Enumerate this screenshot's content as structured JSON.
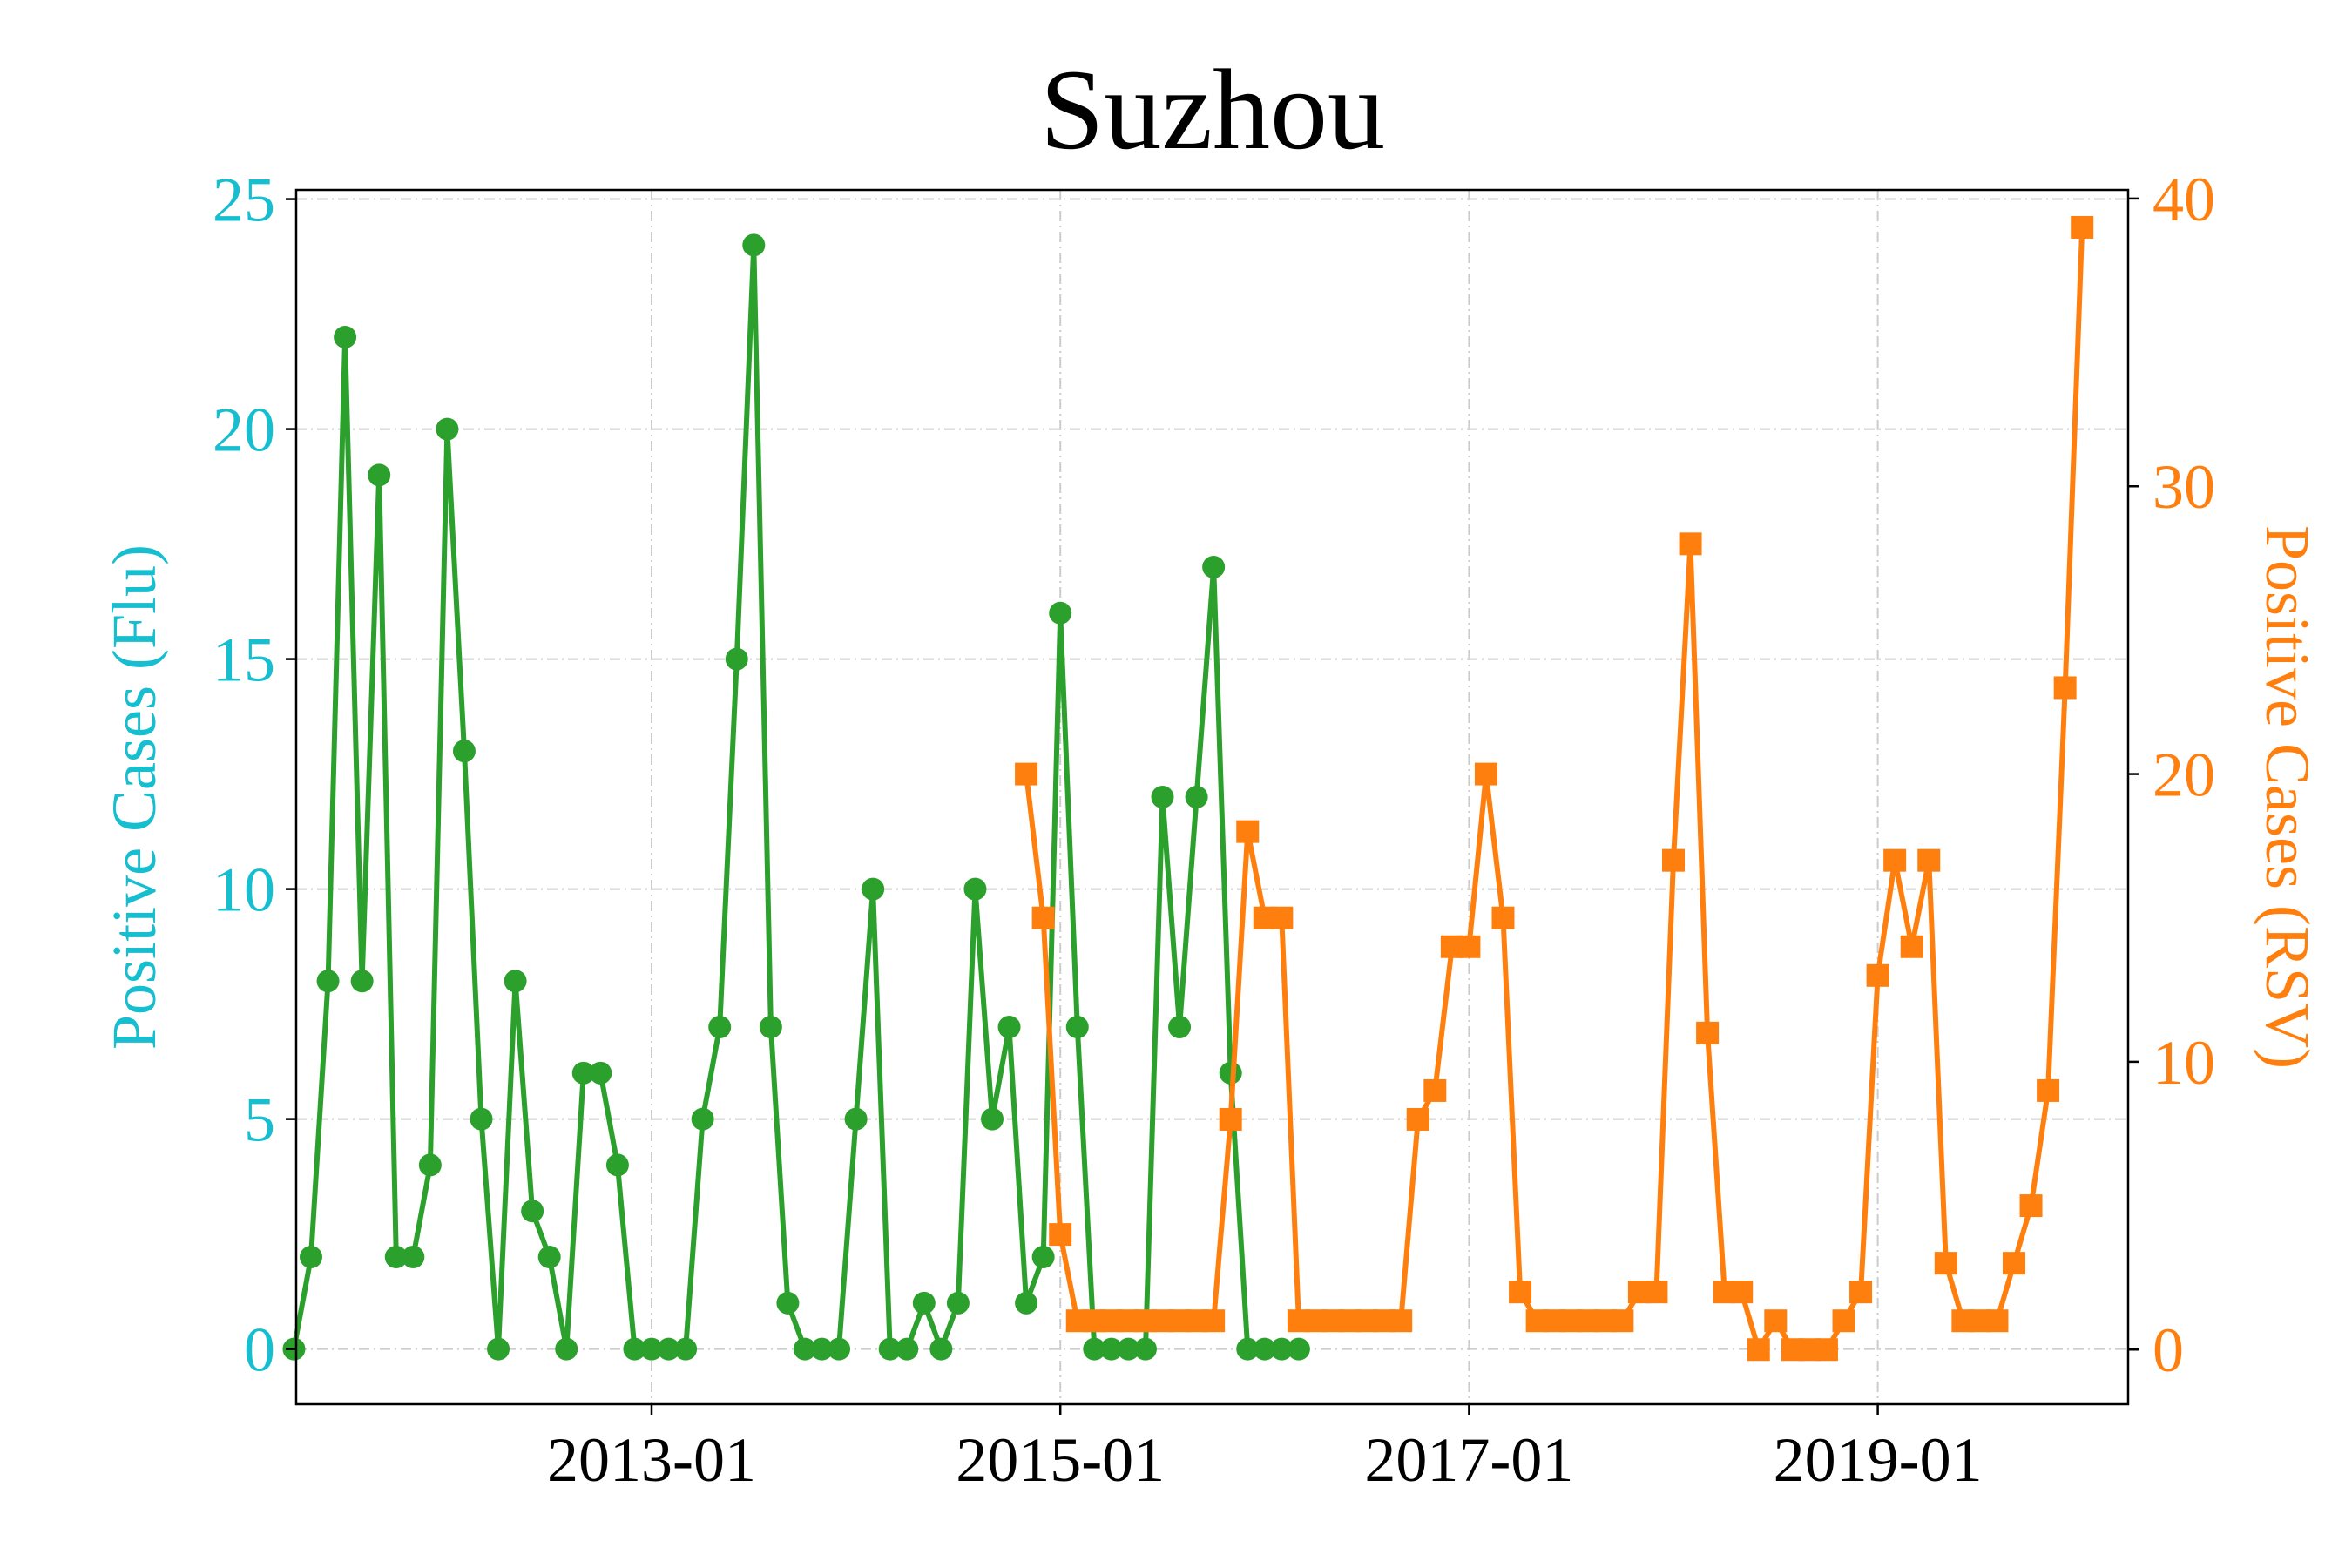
{
  "chart_data": {
    "type": "line",
    "title": "Suzhou",
    "xlabel": "",
    "x_ticks": [
      "2013-01",
      "2015-01",
      "2017-01",
      "2019-01"
    ],
    "y_left": {
      "label": "Positive Cases (Flu)",
      "ylim": [
        -1.2,
        25.2
      ],
      "ticks": [
        0,
        5,
        10,
        15,
        20,
        25
      ],
      "color": "#17becf"
    },
    "y_right": {
      "label": "Positive Cases (RSV)",
      "ylim": [
        -1.9,
        40.3
      ],
      "ticks": [
        0,
        10,
        20,
        30,
        40
      ],
      "color": "#ff7f0e"
    },
    "grid": true,
    "series": [
      {
        "axis": "left",
        "color": "#2ca02c",
        "marker": "circle",
        "start": "2011-04",
        "values": [
          0,
          2,
          8,
          22,
          8,
          19,
          2,
          2,
          4,
          20,
          13,
          5,
          0,
          8,
          3,
          2,
          0,
          6,
          6,
          4,
          0,
          0,
          0,
          0,
          5,
          7,
          15,
          24,
          7,
          1,
          0,
          0,
          0,
          5,
          10,
          0,
          0,
          1,
          0,
          1,
          10,
          5,
          7,
          1,
          2,
          16,
          7,
          0,
          0,
          0,
          0,
          12,
          7,
          12,
          17,
          6,
          0,
          0,
          0,
          0
        ]
      },
      {
        "axis": "right",
        "color": "#ff7f0e",
        "marker": "square",
        "start": "2014-11",
        "values": [
          20,
          15,
          4,
          1,
          1,
          1,
          1,
          1,
          1,
          1,
          1,
          1,
          8,
          18,
          15,
          15,
          1,
          1,
          1,
          1,
          1,
          1,
          1,
          8,
          9,
          14,
          14,
          20,
          15,
          2,
          1,
          1,
          1,
          1,
          1,
          1,
          2,
          2,
          17,
          28,
          11,
          2,
          2,
          0,
          1,
          0,
          0,
          0,
          1,
          2,
          13,
          17,
          14,
          17,
          3,
          1,
          1,
          1,
          3,
          5,
          9,
          23,
          39
        ]
      }
    ]
  }
}
